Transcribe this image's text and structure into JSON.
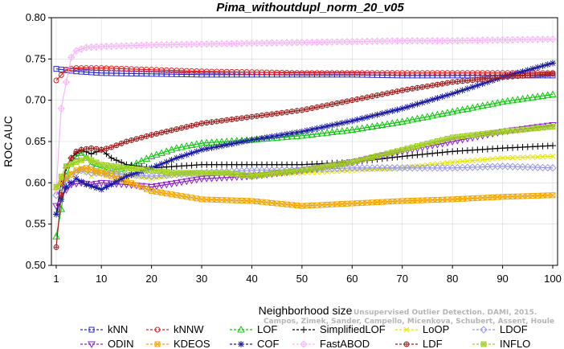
{
  "chart_data": {
    "type": "line",
    "title": "Pima_withoutdupl_norm_20_v05",
    "xlabel": "Neighborhood size",
    "ylabel": "ROC AUC",
    "xlim": [
      1,
      100
    ],
    "ylim": [
      0.5,
      0.8
    ],
    "xticks": [
      1,
      10,
      20,
      30,
      40,
      50,
      60,
      70,
      80,
      90,
      100
    ],
    "yticks": [
      0.5,
      0.55,
      0.6,
      0.65,
      0.7,
      0.75,
      0.8
    ],
    "ytick_labels": [
      "0.50",
      "0.55",
      "0.60",
      "0.65",
      "0.70",
      "0.75",
      "0.80"
    ],
    "legend_position": "bottom",
    "watermark": [
      "Unsupervised Outlier Detection. DAMI, 2015.",
      "Campos, Zimek, Sander, Campello, Micenkova, Schubert, Assent, Houle"
    ],
    "series": [
      {
        "name": "kNN",
        "color": "#2a2ad0",
        "marker": "square",
        "points": [
          [
            1,
            0.738
          ],
          [
            5,
            0.735
          ],
          [
            10,
            0.733
          ],
          [
            20,
            0.732
          ],
          [
            30,
            0.731
          ],
          [
            40,
            0.731
          ],
          [
            50,
            0.731
          ],
          [
            60,
            0.731
          ],
          [
            70,
            0.73
          ],
          [
            80,
            0.73
          ],
          [
            90,
            0.73
          ],
          [
            100,
            0.73
          ]
        ]
      },
      {
        "name": "kNNW",
        "color": "#e02020",
        "marker": "circle",
        "points": [
          [
            1,
            0.724
          ],
          [
            3,
            0.737
          ],
          [
            5,
            0.739
          ],
          [
            10,
            0.739
          ],
          [
            20,
            0.737
          ],
          [
            30,
            0.735
          ],
          [
            40,
            0.734
          ],
          [
            50,
            0.733
          ],
          [
            60,
            0.733
          ],
          [
            70,
            0.733
          ],
          [
            80,
            0.733
          ],
          [
            90,
            0.733
          ],
          [
            100,
            0.733
          ]
        ]
      },
      {
        "name": "LOF",
        "color": "#10c810",
        "marker": "triangle-up",
        "points": [
          [
            1,
            0.535
          ],
          [
            2,
            0.568
          ],
          [
            3,
            0.608
          ],
          [
            4,
            0.625
          ],
          [
            5,
            0.632
          ],
          [
            6,
            0.636
          ],
          [
            7,
            0.63
          ],
          [
            8,
            0.622
          ],
          [
            10,
            0.618
          ],
          [
            12,
            0.615
          ],
          [
            15,
            0.618
          ],
          [
            20,
            0.632
          ],
          [
            25,
            0.642
          ],
          [
            30,
            0.648
          ],
          [
            40,
            0.652
          ],
          [
            50,
            0.657
          ],
          [
            60,
            0.664
          ],
          [
            70,
            0.674
          ],
          [
            80,
            0.686
          ],
          [
            90,
            0.698
          ],
          [
            100,
            0.707
          ]
        ]
      },
      {
        "name": "SimplifiedLOF",
        "color": "#000000",
        "marker": "plus",
        "points": [
          [
            1,
            0.562
          ],
          [
            2,
            0.6
          ],
          [
            3,
            0.618
          ],
          [
            4,
            0.63
          ],
          [
            5,
            0.636
          ],
          [
            6,
            0.64
          ],
          [
            8,
            0.635
          ],
          [
            10,
            0.64
          ],
          [
            12,
            0.63
          ],
          [
            15,
            0.622
          ],
          [
            20,
            0.618
          ],
          [
            30,
            0.622
          ],
          [
            40,
            0.622
          ],
          [
            50,
            0.622
          ],
          [
            60,
            0.625
          ],
          [
            70,
            0.632
          ],
          [
            80,
            0.638
          ],
          [
            90,
            0.642
          ],
          [
            100,
            0.645
          ]
        ]
      },
      {
        "name": "LoOP",
        "color": "#e6e600",
        "marker": "x",
        "points": [
          [
            1,
            0.59
          ],
          [
            2,
            0.605
          ],
          [
            4,
            0.612
          ],
          [
            6,
            0.618
          ],
          [
            8,
            0.608
          ],
          [
            10,
            0.615
          ],
          [
            15,
            0.61
          ],
          [
            20,
            0.605
          ],
          [
            25,
            0.61
          ],
          [
            30,
            0.612
          ],
          [
            40,
            0.61
          ],
          [
            50,
            0.612
          ],
          [
            60,
            0.615
          ],
          [
            70,
            0.618
          ],
          [
            80,
            0.625
          ],
          [
            90,
            0.63
          ],
          [
            100,
            0.632
          ]
        ]
      },
      {
        "name": "LDOF",
        "color": "#9999e6",
        "marker": "diamond",
        "points": [
          [
            1,
            0.585
          ],
          [
            2,
            0.595
          ],
          [
            4,
            0.61
          ],
          [
            6,
            0.615
          ],
          [
            8,
            0.612
          ],
          [
            10,
            0.612
          ],
          [
            15,
            0.61
          ],
          [
            20,
            0.608
          ],
          [
            30,
            0.612
          ],
          [
            40,
            0.615
          ],
          [
            50,
            0.616
          ],
          [
            60,
            0.618
          ],
          [
            70,
            0.618
          ],
          [
            80,
            0.618
          ],
          [
            90,
            0.62
          ],
          [
            100,
            0.618
          ]
        ]
      },
      {
        "name": "ODIN",
        "color": "#9020d0",
        "marker": "triangle-down",
        "points": [
          [
            1,
            0.572
          ],
          [
            2,
            0.585
          ],
          [
            4,
            0.598
          ],
          [
            6,
            0.6
          ],
          [
            8,
            0.598
          ],
          [
            10,
            0.6
          ],
          [
            15,
            0.598
          ],
          [
            20,
            0.595
          ],
          [
            25,
            0.6
          ],
          [
            30,
            0.605
          ],
          [
            40,
            0.608
          ],
          [
            50,
            0.615
          ],
          [
            60,
            0.625
          ],
          [
            70,
            0.638
          ],
          [
            80,
            0.65
          ],
          [
            90,
            0.662
          ],
          [
            100,
            0.67
          ]
        ]
      },
      {
        "name": "KDEOS",
        "color": "#f5a500",
        "marker": "square-x",
        "points": [
          [
            1,
            0.595
          ],
          [
            3,
            0.605
          ],
          [
            5,
            0.615
          ],
          [
            7,
            0.618
          ],
          [
            10,
            0.612
          ],
          [
            15,
            0.602
          ],
          [
            20,
            0.59
          ],
          [
            25,
            0.585
          ],
          [
            30,
            0.58
          ],
          [
            40,
            0.578
          ],
          [
            50,
            0.572
          ],
          [
            60,
            0.575
          ],
          [
            70,
            0.578
          ],
          [
            80,
            0.58
          ],
          [
            90,
            0.583
          ],
          [
            100,
            0.585
          ]
        ]
      },
      {
        "name": "COF",
        "color": "#1a1aa0",
        "marker": "asterisk",
        "points": [
          [
            1,
            0.562
          ],
          [
            2,
            0.58
          ],
          [
            3,
            0.595
          ],
          [
            4,
            0.6
          ],
          [
            5,
            0.605
          ],
          [
            7,
            0.598
          ],
          [
            10,
            0.592
          ],
          [
            12,
            0.598
          ],
          [
            15,
            0.608
          ],
          [
            20,
            0.618
          ],
          [
            25,
            0.63
          ],
          [
            30,
            0.64
          ],
          [
            40,
            0.652
          ],
          [
            50,
            0.662
          ],
          [
            60,
            0.675
          ],
          [
            70,
            0.69
          ],
          [
            80,
            0.708
          ],
          [
            90,
            0.728
          ],
          [
            100,
            0.745
          ]
        ]
      },
      {
        "name": "FastABOD",
        "color": "#f5b8f5",
        "marker": "diamond-x",
        "points": [
          [
            1,
            0.592
          ],
          [
            2,
            0.69
          ],
          [
            3,
            0.722
          ],
          [
            4,
            0.752
          ],
          [
            5,
            0.76
          ],
          [
            7,
            0.764
          ],
          [
            10,
            0.765
          ],
          [
            15,
            0.766
          ],
          [
            20,
            0.767
          ],
          [
            30,
            0.768
          ],
          [
            40,
            0.769
          ],
          [
            50,
            0.77
          ],
          [
            60,
            0.771
          ],
          [
            70,
            0.772
          ],
          [
            80,
            0.772
          ],
          [
            90,
            0.773
          ],
          [
            100,
            0.774
          ]
        ]
      },
      {
        "name": "LDF",
        "color": "#a02020",
        "marker": "circle-plus",
        "points": [
          [
            1,
            0.522
          ],
          [
            2,
            0.585
          ],
          [
            3,
            0.62
          ],
          [
            4,
            0.63
          ],
          [
            5,
            0.638
          ],
          [
            6,
            0.64
          ],
          [
            8,
            0.642
          ],
          [
            10,
            0.64
          ],
          [
            12,
            0.643
          ],
          [
            15,
            0.65
          ],
          [
            20,
            0.658
          ],
          [
            25,
            0.665
          ],
          [
            30,
            0.672
          ],
          [
            40,
            0.68
          ],
          [
            50,
            0.688
          ],
          [
            60,
            0.7
          ],
          [
            70,
            0.712
          ],
          [
            80,
            0.722
          ],
          [
            90,
            0.728
          ],
          [
            100,
            0.732
          ]
        ]
      },
      {
        "name": "INFLO",
        "color": "#a0d020",
        "marker": "star-square",
        "points": [
          [
            1,
            0.595
          ],
          [
            3,
            0.62
          ],
          [
            5,
            0.625
          ],
          [
            7,
            0.63
          ],
          [
            10,
            0.622
          ],
          [
            15,
            0.618
          ],
          [
            20,
            0.615
          ],
          [
            25,
            0.612
          ],
          [
            30,
            0.612
          ],
          [
            35,
            0.612
          ],
          [
            40,
            0.608
          ],
          [
            45,
            0.612
          ],
          [
            50,
            0.615
          ],
          [
            60,
            0.625
          ],
          [
            70,
            0.64
          ],
          [
            80,
            0.655
          ],
          [
            90,
            0.662
          ],
          [
            100,
            0.668
          ]
        ]
      }
    ]
  }
}
